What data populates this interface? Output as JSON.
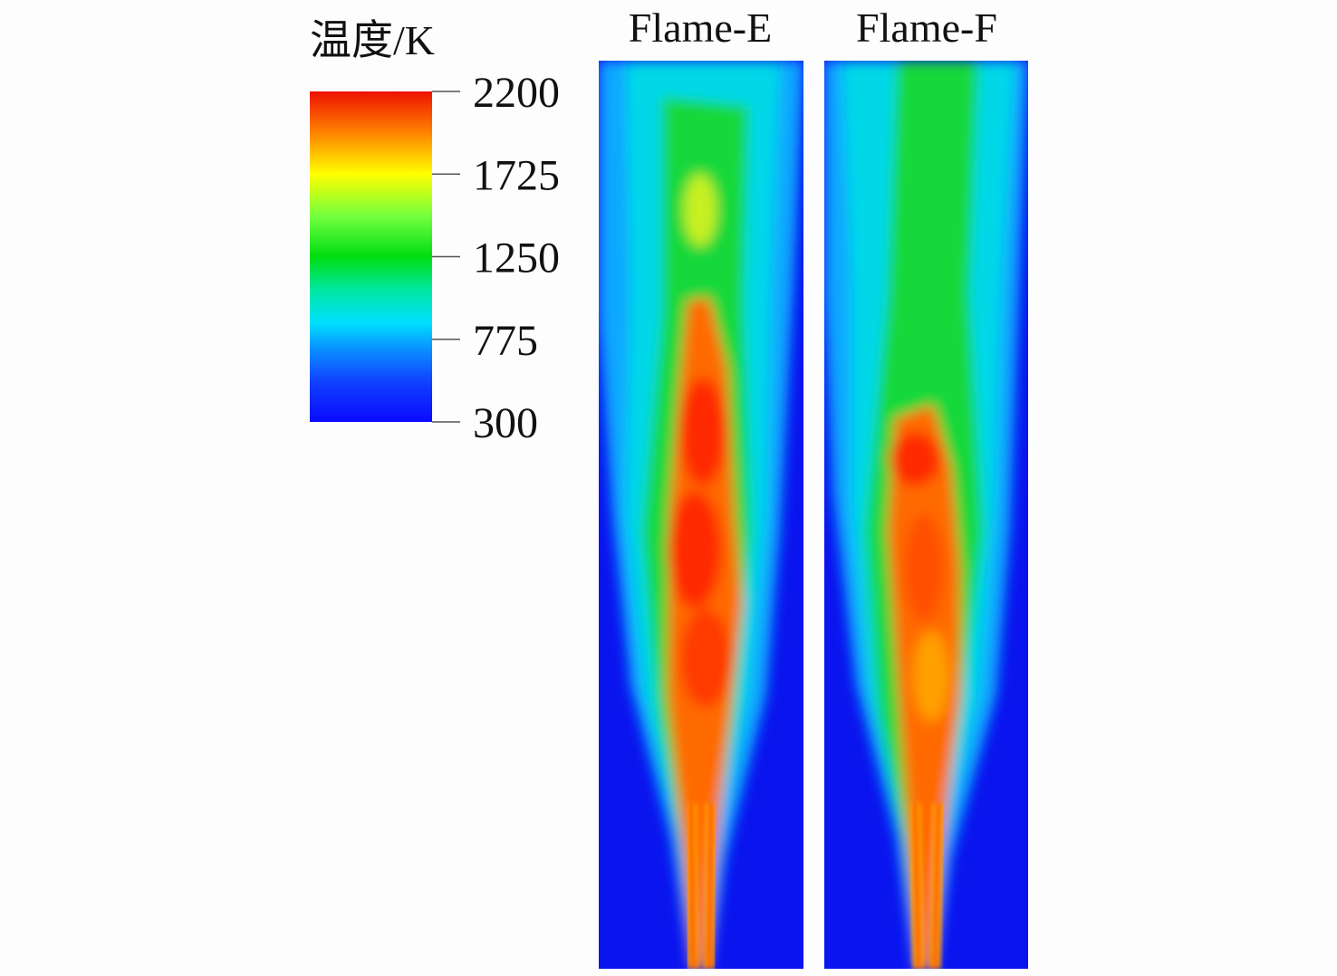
{
  "colorbar": {
    "title": "温度/K",
    "range": [
      300,
      2200
    ],
    "ticks": [
      300,
      775,
      1250,
      1725,
      2200
    ]
  },
  "panels": [
    {
      "label": "Flame-E"
    },
    {
      "label": "Flame-F"
    }
  ]
}
